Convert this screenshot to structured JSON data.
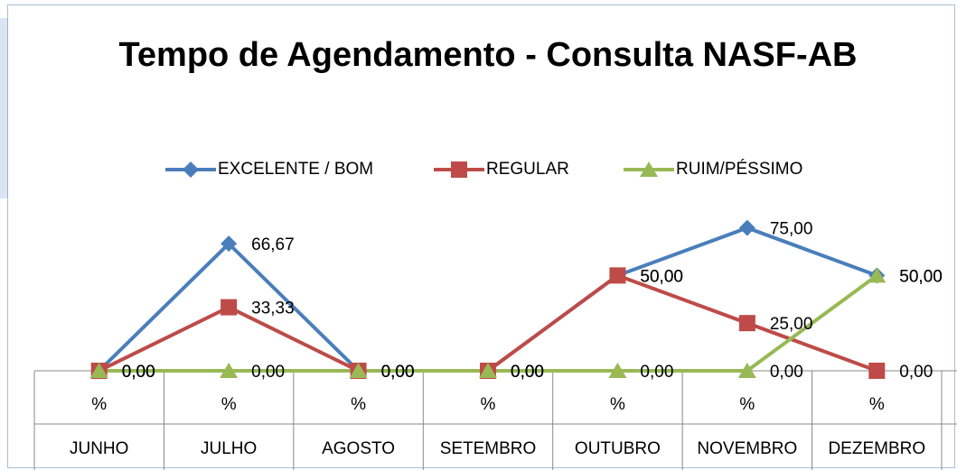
{
  "chart_data": {
    "type": "line",
    "title": "Tempo de Agendamento - Consulta NASF-AB",
    "categories": [
      "JUNHO",
      "JULHO",
      "AGOSTO",
      "SETEMBRO",
      "OUTUBRO",
      "NOVEMBRO",
      "DEZEMBRO"
    ],
    "category_units": [
      "%",
      "%",
      "%",
      "%",
      "%",
      "%",
      "%"
    ],
    "series": [
      {
        "name": "EXCELENTE / BOM",
        "color": "#4a7ebb",
        "marker": "diamond",
        "values": [
          0,
          66.67,
          0,
          0,
          50,
          75,
          50
        ],
        "value_labels": [
          "0,00",
          "66,67",
          "0,00",
          "0,00",
          "50,00",
          "75,00",
          "50,00"
        ]
      },
      {
        "name": "REGULAR",
        "color": "#be4b48",
        "marker": "square",
        "values": [
          0,
          33.33,
          0,
          0,
          50,
          25,
          0
        ],
        "value_labels": [
          "0,00",
          "33,33",
          "0,00",
          "0,00",
          "50,00",
          "25,00",
          "0,00"
        ]
      },
      {
        "name": "RUIM/PÉSSIMO",
        "color": "#98b954",
        "marker": "triangle",
        "values": [
          0,
          0,
          0,
          0,
          0,
          0,
          50
        ],
        "value_labels": [
          "0,00",
          "0,00",
          "0,00",
          "0,00",
          "0,00",
          "0,00",
          "50,00"
        ]
      }
    ],
    "ylim": [
      0,
      80
    ],
    "legend": "top"
  }
}
